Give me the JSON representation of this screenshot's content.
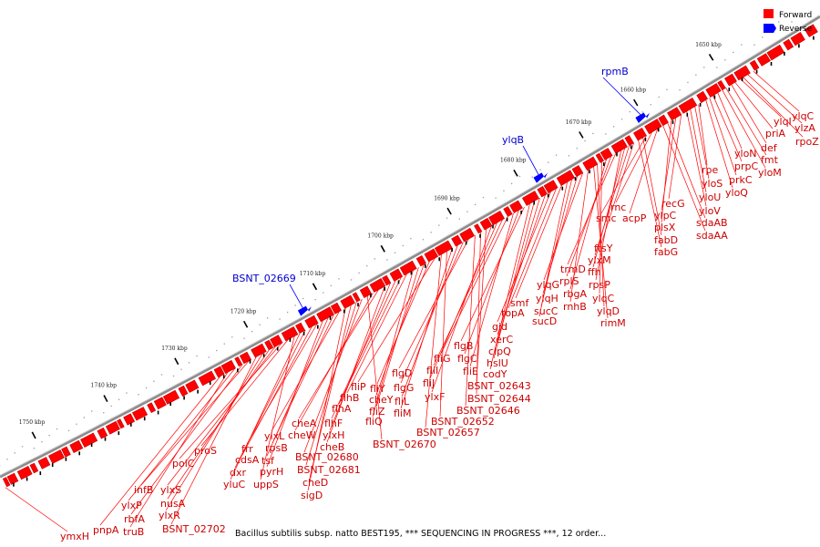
{
  "legend": {
    "forward_label": "Forward",
    "reverse_label": "Reverse",
    "forward_color": "#ff0000",
    "reverse_color": "#0000ff"
  },
  "caption": "Bacillus subtilis subsp. natto BEST195, *** SEQUENCING IN PROGRESS ***, 12 order...",
  "ticks": [
    "1650 kbp",
    "1660 kbp",
    "1670 kbp",
    "1680 kbp",
    "1690 kbp",
    "1700 kbp",
    "1710 kbp",
    "1720 kbp",
    "1730 kbp",
    "1740 kbp",
    "1750 kbp"
  ],
  "reverse_genes": [
    "rpmB",
    "ylqB",
    "BSNT_02669"
  ],
  "forward_genes": [
    "ylqC",
    "ylzA",
    "rpoZ",
    "ylqI",
    "priA",
    "def",
    "fmt",
    "yloM",
    "yloN",
    "prpC",
    "prkC",
    "yloQ",
    "rpe",
    "yloS",
    "yloU",
    "yloV",
    "recG",
    "ylpC",
    "plsX",
    "sdaAB",
    "sdaAA",
    "acpP",
    "rnc",
    "smc",
    "fabD",
    "fabG",
    "ftsY",
    "ylxM",
    "ffh",
    "rpsP",
    "trmD",
    "rplS",
    "rbgA",
    "ylqC",
    "ylqD",
    "rimM",
    "rnhB",
    "ylqG",
    "ylqH",
    "sucC",
    "sucD",
    "smf",
    "topA",
    "gid",
    "xerC",
    "clpQ",
    "hslU",
    "codY",
    "flgB",
    "flgC",
    "fliE",
    "fliG",
    "fliI",
    "fliJ",
    "ylxF",
    "BSNT_02643",
    "BSNT_02644",
    "BSNT_02646",
    "flgD",
    "flgG",
    "fliL",
    "fliM",
    "BSNT_02652",
    "BSNT_02657",
    "fliP",
    "fliY",
    "cheY",
    "fliZ",
    "fliQ",
    "flhB",
    "flhA",
    "flhF",
    "ylxH",
    "cheB",
    "cheA",
    "cheW",
    "BSNT_02670",
    "BSNT_02680",
    "BSNT_02681",
    "cheD",
    "sigD",
    "ylxL",
    "rpsB",
    "tsf",
    "pyrH",
    "frr",
    "cdsA",
    "dxr",
    "yluC",
    "uppS",
    "proS",
    "polC",
    "ylxS",
    "nusA",
    "ylxR",
    "BSNT_02702",
    "infB",
    "rbfA",
    "ylxP",
    "truB",
    "pnpA",
    "ymxH"
  ]
}
